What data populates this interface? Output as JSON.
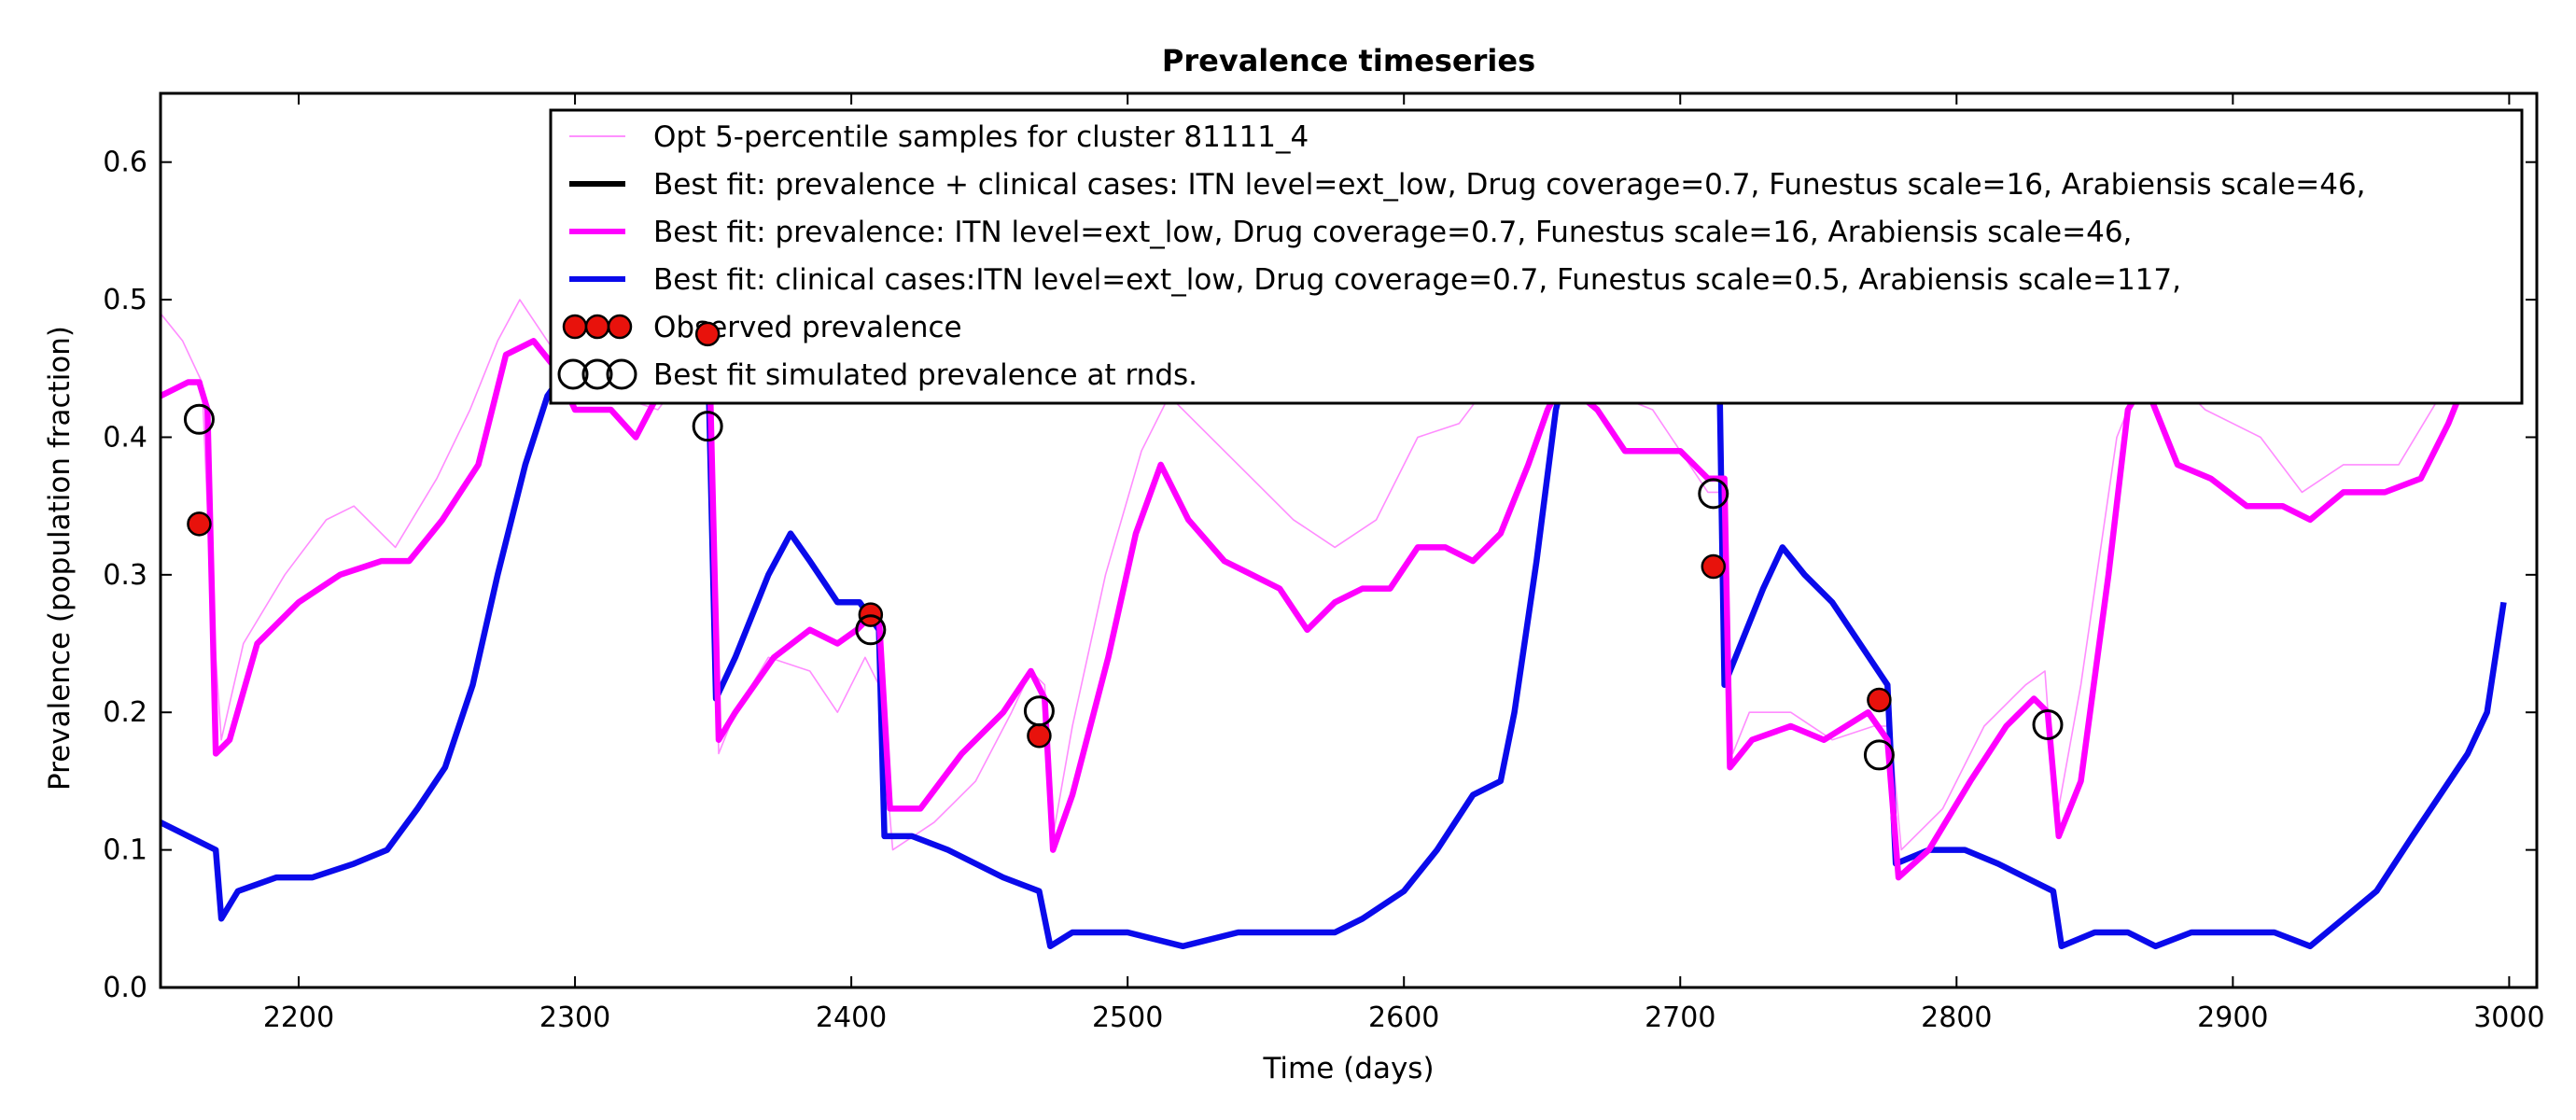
{
  "chart_data": {
    "type": "line",
    "title": "Prevalence timeseries",
    "xlabel": "Time (days)",
    "ylabel": "Prevalence (population fraction)",
    "xlim": [
      2150,
      3010
    ],
    "ylim": [
      0.0,
      0.65
    ],
    "x_ticks": [
      2200,
      2300,
      2400,
      2500,
      2600,
      2700,
      2800,
      2900,
      3000
    ],
    "y_ticks": [
      0.0,
      0.1,
      0.2,
      0.3,
      0.4,
      0.5,
      0.6
    ],
    "x_tick_labels": [
      "2200",
      "2300",
      "2400",
      "2500",
      "2600",
      "2700",
      "2800",
      "2900",
      "3000"
    ],
    "y_tick_labels": [
      "0.0",
      "0.1",
      "0.2",
      "0.3",
      "0.4",
      "0.5",
      "0.6"
    ],
    "grid": false,
    "legend_position": "top-right",
    "colors": {
      "samples": "#ff80ff",
      "best_combined": "#000000",
      "best_prevalence": "#ff00ff",
      "best_clinical": "#0a0aeb",
      "observed_fill": "#e8120c",
      "simulated_edge": "#000000"
    },
    "series": [
      {
        "name": "Opt 5-percentile samples for cluster 81111_4",
        "style": "thin",
        "points": [
          [
            2150,
            0.49
          ],
          [
            2158,
            0.47
          ],
          [
            2165,
            0.44
          ],
          [
            2168,
            0.3
          ],
          [
            2172,
            0.18
          ],
          [
            2180,
            0.25
          ],
          [
            2195,
            0.3
          ],
          [
            2210,
            0.34
          ],
          [
            2220,
            0.35
          ],
          [
            2235,
            0.32
          ],
          [
            2250,
            0.37
          ],
          [
            2262,
            0.42
          ],
          [
            2272,
            0.47
          ],
          [
            2280,
            0.5
          ],
          [
            2290,
            0.47
          ],
          [
            2300,
            0.44
          ],
          [
            2315,
            0.43
          ],
          [
            2330,
            0.42
          ],
          [
            2345,
            0.46
          ],
          [
            2349,
            0.44
          ],
          [
            2352,
            0.17
          ],
          [
            2358,
            0.2
          ],
          [
            2370,
            0.24
          ],
          [
            2385,
            0.23
          ],
          [
            2395,
            0.2
          ],
          [
            2405,
            0.24
          ],
          [
            2410,
            0.22
          ],
          [
            2415,
            0.1
          ],
          [
            2430,
            0.12
          ],
          [
            2445,
            0.15
          ],
          [
            2458,
            0.2
          ],
          [
            2465,
            0.23
          ],
          [
            2470,
            0.22
          ],
          [
            2473,
            0.11
          ],
          [
            2480,
            0.19
          ],
          [
            2492,
            0.3
          ],
          [
            2505,
            0.39
          ],
          [
            2515,
            0.43
          ],
          [
            2525,
            0.41
          ],
          [
            2540,
            0.38
          ],
          [
            2560,
            0.34
          ],
          [
            2575,
            0.32
          ],
          [
            2590,
            0.34
          ],
          [
            2605,
            0.4
          ],
          [
            2620,
            0.41
          ],
          [
            2635,
            0.45
          ],
          [
            2645,
            0.47
          ],
          [
            2655,
            0.45
          ],
          [
            2665,
            0.44
          ],
          [
            2690,
            0.42
          ],
          [
            2710,
            0.36
          ],
          [
            2716,
            0.36
          ],
          [
            2719,
            0.17
          ],
          [
            2725,
            0.2
          ],
          [
            2740,
            0.2
          ],
          [
            2755,
            0.18
          ],
          [
            2770,
            0.19
          ],
          [
            2776,
            0.19
          ],
          [
            2780,
            0.1
          ],
          [
            2795,
            0.13
          ],
          [
            2810,
            0.19
          ],
          [
            2825,
            0.22
          ],
          [
            2832,
            0.23
          ],
          [
            2836,
            0.12
          ],
          [
            2845,
            0.22
          ],
          [
            2858,
            0.4
          ],
          [
            2870,
            0.46
          ],
          [
            2890,
            0.42
          ],
          [
            2910,
            0.4
          ],
          [
            2925,
            0.36
          ],
          [
            2940,
            0.38
          ],
          [
            2960,
            0.38
          ],
          [
            2975,
            0.43
          ],
          [
            2980,
            0.47
          ]
        ]
      },
      {
        "name": "Best fit: prevalence + clinical cases: ITN level=ext_low, Drug coverage=0.7, Funestus scale=16, Arabiensis scale=46,",
        "style": "thick",
        "points": []
      },
      {
        "name": "Best fit: prevalence: ITN level=ext_low, Drug coverage=0.7, Funestus scale=16, Arabiensis scale=46,",
        "style": "thick",
        "points": [
          [
            2150,
            0.43
          ],
          [
            2160,
            0.44
          ],
          [
            2164,
            0.44
          ],
          [
            2167,
            0.42
          ],
          [
            2170,
            0.17
          ],
          [
            2175,
            0.18
          ],
          [
            2185,
            0.25
          ],
          [
            2200,
            0.28
          ],
          [
            2215,
            0.3
          ],
          [
            2230,
            0.31
          ],
          [
            2240,
            0.31
          ],
          [
            2252,
            0.34
          ],
          [
            2265,
            0.38
          ],
          [
            2275,
            0.46
          ],
          [
            2285,
            0.47
          ],
          [
            2293,
            0.45
          ],
          [
            2300,
            0.42
          ],
          [
            2313,
            0.42
          ],
          [
            2322,
            0.4
          ],
          [
            2335,
            0.45
          ],
          [
            2345,
            0.46
          ],
          [
            2349,
            0.43
          ],
          [
            2352,
            0.18
          ],
          [
            2358,
            0.2
          ],
          [
            2372,
            0.24
          ],
          [
            2385,
            0.26
          ],
          [
            2395,
            0.25
          ],
          [
            2402,
            0.26
          ],
          [
            2407,
            0.27
          ],
          [
            2410,
            0.27
          ],
          [
            2414,
            0.13
          ],
          [
            2425,
            0.13
          ],
          [
            2440,
            0.17
          ],
          [
            2455,
            0.2
          ],
          [
            2465,
            0.23
          ],
          [
            2470,
            0.21
          ],
          [
            2473,
            0.1
          ],
          [
            2480,
            0.14
          ],
          [
            2493,
            0.24
          ],
          [
            2503,
            0.33
          ],
          [
            2512,
            0.38
          ],
          [
            2522,
            0.34
          ],
          [
            2535,
            0.31
          ],
          [
            2545,
            0.3
          ],
          [
            2555,
            0.29
          ],
          [
            2565,
            0.26
          ],
          [
            2575,
            0.28
          ],
          [
            2585,
            0.29
          ],
          [
            2595,
            0.29
          ],
          [
            2605,
            0.32
          ],
          [
            2615,
            0.32
          ],
          [
            2625,
            0.31
          ],
          [
            2635,
            0.33
          ],
          [
            2645,
            0.38
          ],
          [
            2652,
            0.42
          ],
          [
            2657,
            0.44
          ],
          [
            2664,
            0.43
          ],
          [
            2670,
            0.42
          ],
          [
            2680,
            0.39
          ],
          [
            2690,
            0.39
          ],
          [
            2700,
            0.39
          ],
          [
            2710,
            0.37
          ],
          [
            2716,
            0.37
          ],
          [
            2718,
            0.16
          ],
          [
            2726,
            0.18
          ],
          [
            2740,
            0.19
          ],
          [
            2752,
            0.18
          ],
          [
            2760,
            0.19
          ],
          [
            2768,
            0.2
          ],
          [
            2775,
            0.18
          ],
          [
            2779,
            0.08
          ],
          [
            2790,
            0.1
          ],
          [
            2805,
            0.15
          ],
          [
            2818,
            0.19
          ],
          [
            2828,
            0.21
          ],
          [
            2833,
            0.2
          ],
          [
            2837,
            0.11
          ],
          [
            2845,
            0.15
          ],
          [
            2855,
            0.3
          ],
          [
            2862,
            0.42
          ],
          [
            2868,
            0.44
          ],
          [
            2880,
            0.38
          ],
          [
            2892,
            0.37
          ],
          [
            2905,
            0.35
          ],
          [
            2918,
            0.35
          ],
          [
            2928,
            0.34
          ],
          [
            2940,
            0.36
          ],
          [
            2955,
            0.36
          ],
          [
            2968,
            0.37
          ],
          [
            2978,
            0.41
          ],
          [
            2982,
            0.43
          ]
        ]
      },
      {
        "name": "Best fit: clinical cases:ITN level=ext_low, Drug coverage=0.7, Funestus scale=0.5, Arabiensis scale=117,",
        "style": "thick",
        "points": [
          [
            2150,
            0.12
          ],
          [
            2160,
            0.11
          ],
          [
            2170,
            0.1
          ],
          [
            2172,
            0.05
          ],
          [
            2178,
            0.07
          ],
          [
            2192,
            0.08
          ],
          [
            2205,
            0.08
          ],
          [
            2220,
            0.09
          ],
          [
            2232,
            0.1
          ],
          [
            2243,
            0.13
          ],
          [
            2253,
            0.16
          ],
          [
            2263,
            0.22
          ],
          [
            2272,
            0.3
          ],
          [
            2282,
            0.38
          ],
          [
            2290,
            0.43
          ],
          [
            2297,
            0.45
          ],
          [
            2305,
            0.47
          ],
          [
            2320,
            0.48
          ],
          [
            2348,
            0.47
          ],
          [
            2351,
            0.21
          ],
          [
            2358,
            0.24
          ],
          [
            2370,
            0.3
          ],
          [
            2378,
            0.33
          ],
          [
            2385,
            0.31
          ],
          [
            2395,
            0.28
          ],
          [
            2403,
            0.28
          ],
          [
            2410,
            0.26
          ],
          [
            2412,
            0.11
          ],
          [
            2422,
            0.11
          ],
          [
            2435,
            0.1
          ],
          [
            2445,
            0.09
          ],
          [
            2455,
            0.08
          ],
          [
            2468,
            0.07
          ],
          [
            2472,
            0.03
          ],
          [
            2480,
            0.04
          ],
          [
            2500,
            0.04
          ],
          [
            2520,
            0.03
          ],
          [
            2540,
            0.04
          ],
          [
            2560,
            0.04
          ],
          [
            2575,
            0.04
          ],
          [
            2585,
            0.05
          ],
          [
            2600,
            0.07
          ],
          [
            2612,
            0.1
          ],
          [
            2625,
            0.14
          ],
          [
            2635,
            0.15
          ],
          [
            2640,
            0.2
          ],
          [
            2648,
            0.31
          ],
          [
            2655,
            0.42
          ],
          [
            2660,
            0.46
          ],
          [
            2665,
            0.48
          ],
          [
            2710,
            0.48
          ],
          [
            2714,
            0.47
          ],
          [
            2716,
            0.22
          ],
          [
            2722,
            0.25
          ],
          [
            2730,
            0.29
          ],
          [
            2737,
            0.32
          ],
          [
            2745,
            0.3
          ],
          [
            2755,
            0.28
          ],
          [
            2765,
            0.25
          ],
          [
            2775,
            0.22
          ],
          [
            2778,
            0.09
          ],
          [
            2790,
            0.1
          ],
          [
            2803,
            0.1
          ],
          [
            2815,
            0.09
          ],
          [
            2825,
            0.08
          ],
          [
            2835,
            0.07
          ],
          [
            2838,
            0.03
          ],
          [
            2850,
            0.04
          ],
          [
            2862,
            0.04
          ],
          [
            2872,
            0.03
          ],
          [
            2885,
            0.04
          ],
          [
            2900,
            0.04
          ],
          [
            2915,
            0.04
          ],
          [
            2928,
            0.03
          ],
          [
            2940,
            0.05
          ],
          [
            2952,
            0.07
          ],
          [
            2965,
            0.11
          ],
          [
            2975,
            0.14
          ],
          [
            2985,
            0.17
          ],
          [
            2992,
            0.2
          ],
          [
            2998,
            0.28
          ]
        ]
      },
      {
        "name": "Observed prevalence",
        "style": "marker-filled",
        "points": [
          [
            2164,
            0.337
          ],
          [
            2348,
            0.475
          ],
          [
            2407,
            0.271
          ],
          [
            2468,
            0.183
          ],
          [
            2712,
            0.306
          ],
          [
            2772,
            0.209
          ]
        ]
      },
      {
        "name": "Best fit simulated prevalence at rnds.",
        "style": "marker-open",
        "points": [
          [
            2164,
            0.413
          ],
          [
            2348,
            0.408
          ],
          [
            2407,
            0.26
          ],
          [
            2468,
            0.201
          ],
          [
            2712,
            0.359
          ],
          [
            2772,
            0.169
          ],
          [
            2833,
            0.191
          ]
        ]
      }
    ]
  }
}
